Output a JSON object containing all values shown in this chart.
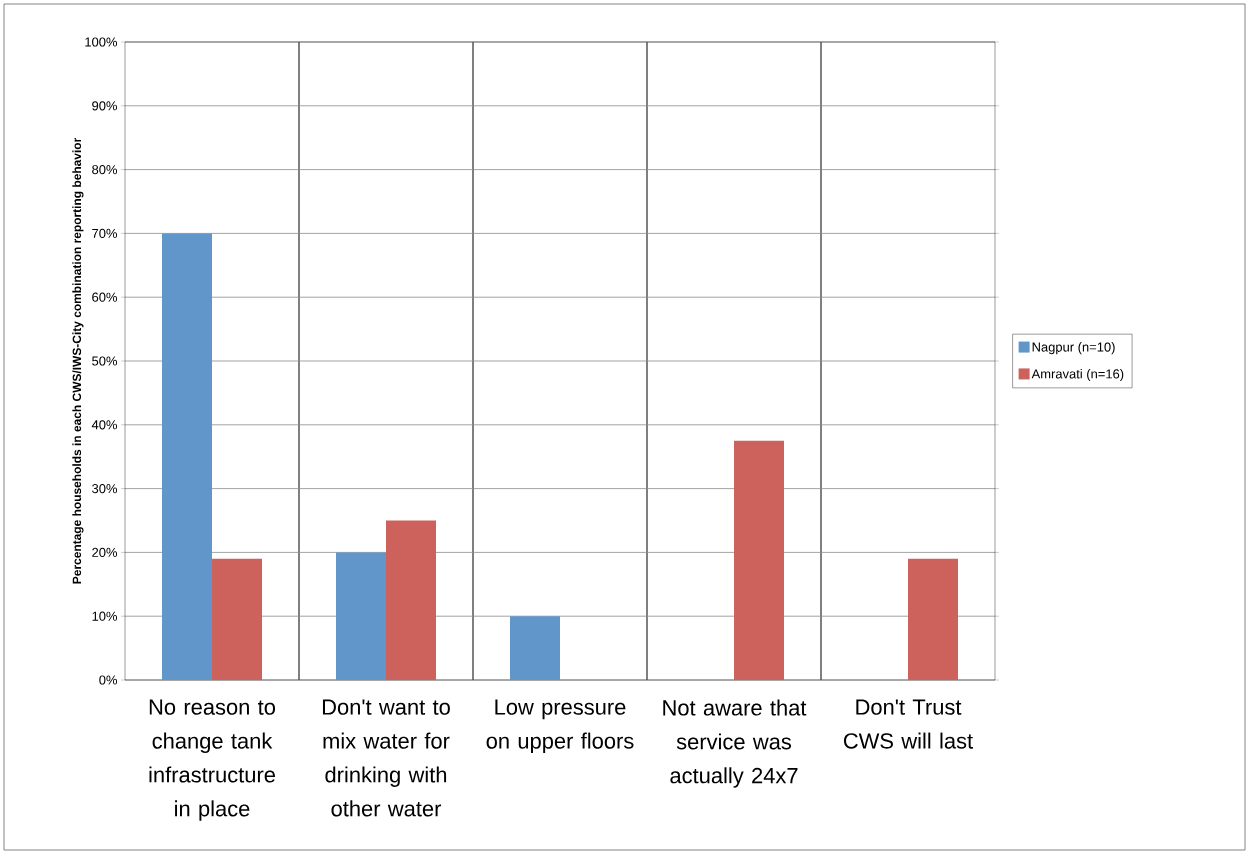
{
  "chart_data": {
    "type": "bar",
    "ylabel": "Percentage households in each CWS/IWS-City combination reporting behavior",
    "categories": [
      "No reason to change tank infrastructure in place",
      "Don't want to mix water for drinking with other water",
      "Low pressure on upper floors",
      "Not aware that service was actually 24x7",
      "Don't Trust CWS will last"
    ],
    "series": [
      {
        "name": "Nagpur (n=10)",
        "color": "#6096ca",
        "values": [
          70,
          20,
          10,
          null,
          null
        ]
      },
      {
        "name": "Amravati (n=16)",
        "color": "#cd625c",
        "values": [
          19,
          25,
          null,
          37.5,
          19
        ]
      }
    ],
    "ylim": [
      0,
      100
    ],
    "yticks": [
      {
        "value": 0,
        "label": "0%"
      },
      {
        "value": 10,
        "label": "10%"
      },
      {
        "value": 20,
        "label": "20%"
      },
      {
        "value": 30,
        "label": "30%"
      },
      {
        "value": 40,
        "label": "40%"
      },
      {
        "value": 50,
        "label": "50%"
      },
      {
        "value": 60,
        "label": "60%"
      },
      {
        "value": 70,
        "label": "70%"
      },
      {
        "value": 80,
        "label": "80%"
      },
      {
        "value": 90,
        "label": "90%"
      },
      {
        "value": 100,
        "label": "100%"
      }
    ],
    "grid": true,
    "legend": "right"
  }
}
